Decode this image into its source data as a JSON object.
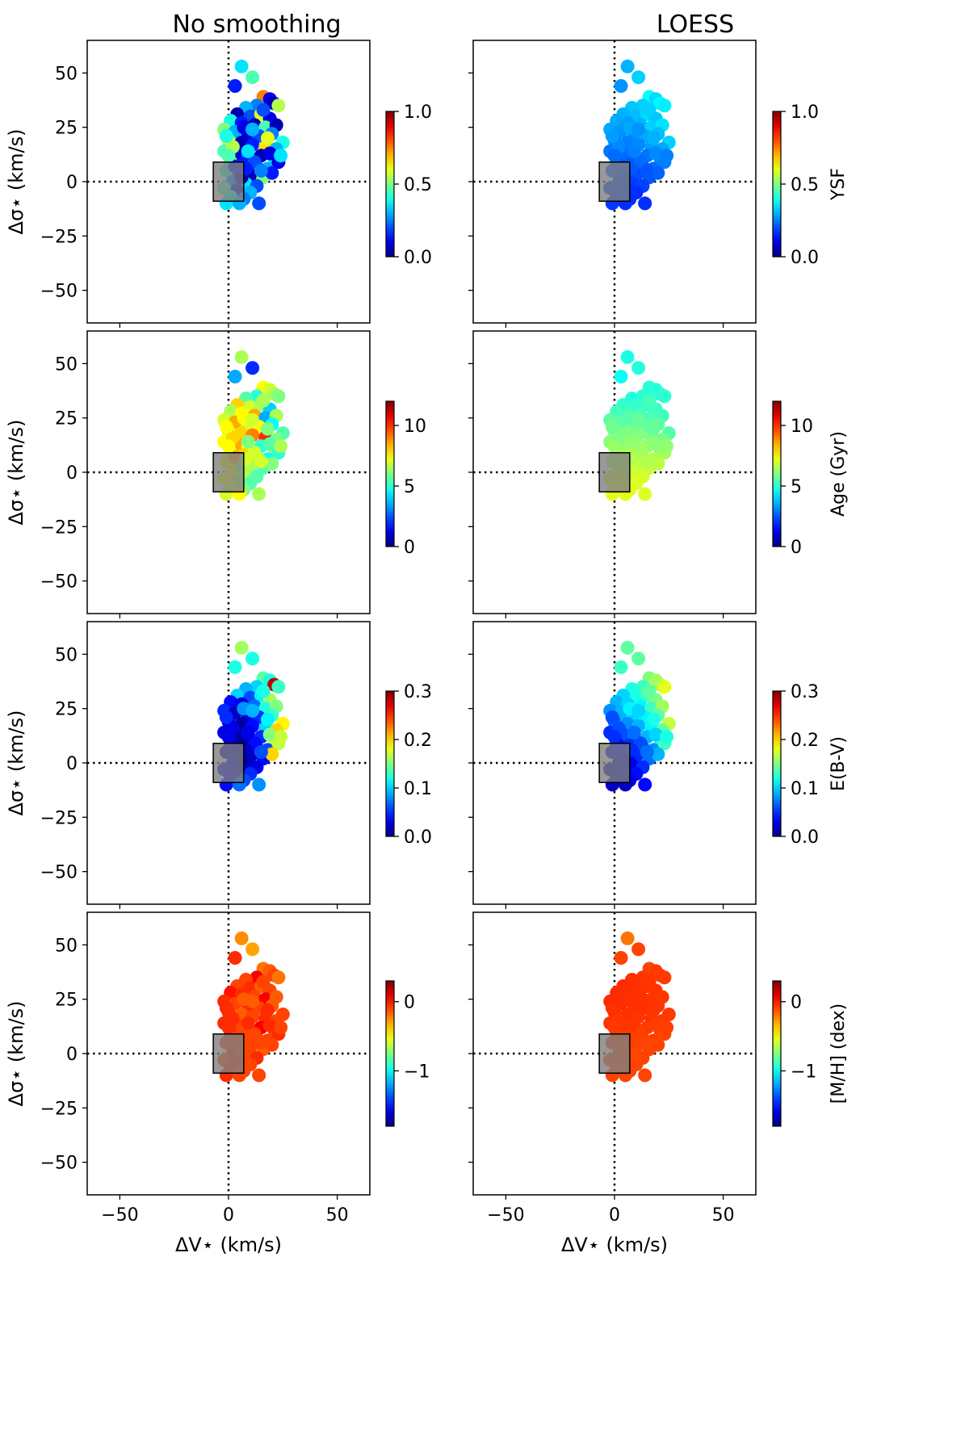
{
  "chart_data": {
    "type": "scatter",
    "columns": [
      {
        "title": "No smoothing",
        "smoothing": "none"
      },
      {
        "title": "LOESS",
        "smoothing": "loess"
      }
    ],
    "xlabel": "ΔV⋆ (km/s)",
    "ylabel": "Δσ⋆ (km/s)",
    "xlim": [
      -65,
      65
    ],
    "ylim": [
      -65,
      65
    ],
    "xticks": [
      -50,
      0,
      50
    ],
    "yticks": [
      -50,
      -25,
      0,
      25,
      50
    ],
    "xtick_labels": [
      "−50",
      "0",
      "50"
    ],
    "ytick_labels": [
      "−50",
      "−25",
      "0",
      "25",
      "50"
    ],
    "x_tick_labels_on_bottom_row_only": true,
    "y_tick_labels_on_left_column_only": true,
    "reference_lines": {
      "x": 0,
      "y": 0,
      "style": "dotted"
    },
    "reference_box": {
      "x": [
        -7,
        7
      ],
      "y": [
        -9,
        9
      ],
      "color": "#808080"
    },
    "colormap": "jet",
    "rows": [
      {
        "colorbar_label": "",
        "right_colorbar_label": "YSF",
        "cbar_range": [
          0,
          1.0
        ],
        "cbar_ticks": [
          0,
          0.5,
          1.0
        ],
        "cbar_tick_labels": [
          "0.0",
          "0.5",
          "1.0"
        ]
      },
      {
        "colorbar_label": "",
        "right_colorbar_label": "Age (Gyr)",
        "cbar_range": [
          0,
          12
        ],
        "cbar_ticks": [
          0,
          5,
          10
        ],
        "cbar_tick_labels": [
          "0",
          "5",
          "10"
        ]
      },
      {
        "colorbar_label": "",
        "right_colorbar_label": "E(B-V)",
        "cbar_range": [
          0,
          0.3
        ],
        "cbar_ticks": [
          0,
          0.1,
          0.2,
          0.3
        ],
        "cbar_tick_labels": [
          "0.0",
          "0.1",
          "0.2",
          "0.3"
        ]
      },
      {
        "colorbar_label": "",
        "right_colorbar_label": "[M/H] (dex)",
        "cbar_range": [
          -1.8,
          0.3
        ],
        "cbar_ticks": [
          -1,
          0
        ],
        "cbar_tick_labels": [
          "−1",
          "0"
        ]
      }
    ],
    "points": [
      {
        "x": 6,
        "y": 53
      },
      {
        "x": 11,
        "y": 48
      },
      {
        "x": 3,
        "y": 44
      },
      {
        "x": 16,
        "y": 39
      },
      {
        "x": 19,
        "y": 38
      },
      {
        "x": 21,
        "y": 36
      },
      {
        "x": 13,
        "y": 35
      },
      {
        "x": 8,
        "y": 34
      },
      {
        "x": 23,
        "y": 35
      },
      {
        "x": 4,
        "y": 31
      },
      {
        "x": 10,
        "y": 30
      },
      {
        "x": 15,
        "y": 31
      },
      {
        "x": 19,
        "y": 29
      },
      {
        "x": 1,
        "y": 28
      },
      {
        "x": 6,
        "y": 27
      },
      {
        "x": 12,
        "y": 26
      },
      {
        "x": 17,
        "y": 25
      },
      {
        "x": 22,
        "y": 26
      },
      {
        "x": -2,
        "y": 24
      },
      {
        "x": 3,
        "y": 23
      },
      {
        "x": 9,
        "y": 22
      },
      {
        "x": 14,
        "y": 21
      },
      {
        "x": 20,
        "y": 22
      },
      {
        "x": 25,
        "y": 18
      },
      {
        "x": 0,
        "y": 19
      },
      {
        "x": 6,
        "y": 18
      },
      {
        "x": 11,
        "y": 17
      },
      {
        "x": 17,
        "y": 16
      },
      {
        "x": 22,
        "y": 15
      },
      {
        "x": -2,
        "y": 14
      },
      {
        "x": 4,
        "y": 13
      },
      {
        "x": 9,
        "y": 12
      },
      {
        "x": 15,
        "y": 12
      },
      {
        "x": 21,
        "y": 11
      },
      {
        "x": 1,
        "y": 9
      },
      {
        "x": 7,
        "y": 8
      },
      {
        "x": 13,
        "y": 7
      },
      {
        "x": 18,
        "y": 6
      },
      {
        "x": 23,
        "y": 9
      },
      {
        "x": -1,
        "y": 5
      },
      {
        "x": 5,
        "y": 4
      },
      {
        "x": 10,
        "y": 3
      },
      {
        "x": 16,
        "y": 2
      },
      {
        "x": 20,
        "y": 4
      },
      {
        "x": 2,
        "y": 0
      },
      {
        "x": 8,
        "y": -1
      },
      {
        "x": 13,
        "y": -2
      },
      {
        "x": -2,
        "y": -3
      },
      {
        "x": 4,
        "y": -4
      },
      {
        "x": 10,
        "y": -5
      },
      {
        "x": 1,
        "y": -7
      },
      {
        "x": 7,
        "y": -8
      },
      {
        "x": 14,
        "y": -10
      },
      {
        "x": -1,
        "y": -10
      },
      {
        "x": 5,
        "y": -10
      },
      {
        "x": 2,
        "y": 16
      },
      {
        "x": 7,
        "y": 25
      },
      {
        "x": 12,
        "y": 9
      },
      {
        "x": 18,
        "y": 20
      },
      {
        "x": 3,
        "y": 7
      },
      {
        "x": 9,
        "y": 14
      },
      {
        "x": 15,
        "y": 5
      },
      {
        "x": 0,
        "y": 12
      },
      {
        "x": 6,
        "y": 2
      },
      {
        "x": 11,
        "y": 24
      },
      {
        "x": 16,
        "y": 33
      },
      {
        "x": 19,
        "y": 13
      },
      {
        "x": 24,
        "y": 12
      },
      {
        "x": -1,
        "y": 21
      },
      {
        "x": 8,
        "y": 6
      }
    ],
    "values": {
      "ysf": [
        [
          0.35,
          0.45,
          0.15,
          0.75,
          0.1,
          0.05,
          0.25,
          0.3,
          0.55,
          0.05,
          0.2,
          0.6,
          0.1,
          0.4,
          0.15,
          0.05,
          0.45,
          0.05,
          0.5,
          0.3,
          0.1,
          0.2,
          0.25,
          0.4,
          0.55,
          0.05,
          0.15,
          0.65,
          0.3,
          0.45,
          0.1,
          0.2,
          0.05,
          0.35,
          0.5,
          0.15,
          0.25,
          0.3,
          0.1,
          0.4,
          0.2,
          0.05,
          0.5,
          0.15,
          0.25,
          0.35,
          0.2,
          0.45,
          0.1,
          0.3,
          0.4,
          0.25,
          0.2,
          0.35,
          0.3,
          0.55,
          0.1,
          0.2,
          0.6,
          0.15,
          0.35,
          0.25,
          0.45,
          0.05,
          0.3,
          0.2,
          0.1,
          0.35,
          0.4,
          0.15
        ],
        [
          0.3,
          0.33,
          0.27,
          0.38,
          0.34,
          0.37,
          0.33,
          0.32,
          0.36,
          0.3,
          0.31,
          0.34,
          0.32,
          0.29,
          0.28,
          0.3,
          0.33,
          0.35,
          0.29,
          0.27,
          0.27,
          0.29,
          0.31,
          0.33,
          0.25,
          0.25,
          0.26,
          0.28,
          0.29,
          0.24,
          0.23,
          0.23,
          0.24,
          0.26,
          0.22,
          0.21,
          0.22,
          0.23,
          0.25,
          0.21,
          0.2,
          0.2,
          0.21,
          0.22,
          0.19,
          0.18,
          0.19,
          0.19,
          0.18,
          0.17,
          0.18,
          0.17,
          0.17,
          0.18,
          0.17,
          0.26,
          0.29,
          0.23,
          0.3,
          0.21,
          0.25,
          0.21,
          0.23,
          0.19,
          0.27,
          0.33,
          0.26,
          0.25,
          0.28,
          0.21
        ]
      ],
      "age": [
        [
          6.5,
          2.0,
          3.5,
          7.5,
          7.0,
          6.5,
          5.0,
          5.5,
          6.0,
          8.0,
          7.0,
          6.5,
          4.0,
          6.5,
          7.5,
          8.5,
          3.5,
          6.5,
          7.0,
          8.5,
          7.0,
          7.5,
          4.5,
          5.5,
          7.0,
          8.0,
          9.0,
          10.0,
          6.0,
          7.5,
          8.5,
          7.5,
          5.0,
          6.5,
          7.0,
          8.0,
          6.0,
          4.5,
          5.0,
          7.5,
          8.0,
          6.5,
          5.5,
          6.0,
          7.5,
          6.5,
          5.5,
          7.5,
          6.5,
          5.5,
          7.0,
          6.0,
          6.5,
          7.0,
          7.5,
          8.0,
          7.5,
          7.0,
          6.0,
          8.5,
          6.0,
          7.0,
          7.5,
          6.5,
          7.0,
          6.5,
          5.5,
          6.5,
          7.5,
          7.0
        ],
        [
          4.8,
          4.9,
          4.6,
          5.0,
          4.9,
          5.0,
          5.0,
          4.9,
          5.0,
          5.1,
          5.1,
          5.2,
          5.2,
          5.3,
          5.3,
          5.4,
          5.4,
          5.3,
          5.6,
          5.6,
          5.7,
          5.7,
          5.6,
          5.5,
          5.9,
          6.0,
          6.0,
          6.0,
          5.9,
          6.1,
          6.2,
          6.3,
          6.3,
          6.2,
          6.4,
          6.5,
          6.5,
          6.5,
          6.4,
          6.6,
          6.7,
          6.8,
          6.8,
          6.7,
          6.9,
          7.0,
          7.0,
          7.0,
          7.1,
          7.1,
          7.1,
          7.2,
          7.1,
          7.2,
          7.2,
          6.0,
          5.5,
          6.4,
          5.7,
          6.6,
          6.2,
          6.6,
          6.3,
          6.8,
          5.7,
          5.3,
          6.1,
          6.2,
          5.8,
          6.6
        ]
      ],
      "ebv": [
        [
          0.16,
          0.12,
          0.12,
          0.14,
          0.12,
          0.28,
          0.1,
          0.09,
          0.13,
          0.1,
          0.06,
          0.11,
          0.16,
          0.04,
          0.03,
          0.07,
          0.12,
          0.15,
          0.05,
          0.02,
          0.03,
          0.05,
          0.13,
          0.19,
          0.03,
          0.01,
          0.04,
          0.1,
          0.2,
          0.03,
          0.01,
          0.02,
          0.05,
          0.18,
          0.02,
          0.01,
          0.03,
          0.06,
          0.17,
          0.02,
          0.01,
          0.02,
          0.04,
          0.2,
          0.03,
          0.02,
          0.03,
          0.04,
          0.02,
          0.05,
          0.03,
          0.06,
          0.08,
          0.04,
          0.07,
          0.03,
          0.08,
          0.04,
          0.11,
          0.02,
          0.03,
          0.06,
          0.03,
          0.01,
          0.09,
          0.12,
          0.15,
          0.17,
          0.05,
          0.02
        ],
        [
          0.14,
          0.14,
          0.13,
          0.15,
          0.16,
          0.16,
          0.13,
          0.12,
          0.18,
          0.1,
          0.12,
          0.13,
          0.15,
          0.09,
          0.1,
          0.11,
          0.13,
          0.16,
          0.08,
          0.09,
          0.1,
          0.11,
          0.14,
          0.17,
          0.07,
          0.08,
          0.09,
          0.11,
          0.14,
          0.05,
          0.06,
          0.07,
          0.09,
          0.12,
          0.04,
          0.05,
          0.06,
          0.08,
          0.13,
          0.03,
          0.04,
          0.05,
          0.07,
          0.09,
          0.03,
          0.03,
          0.05,
          0.02,
          0.03,
          0.04,
          0.02,
          0.03,
          0.04,
          0.02,
          0.02,
          0.06,
          0.11,
          0.06,
          0.12,
          0.04,
          0.07,
          0.07,
          0.05,
          0.03,
          0.1,
          0.14,
          0.1,
          0.12,
          0.06,
          0.05
        ]
      ],
      "mh": [
        [
          -0.25,
          -0.3,
          -0.05,
          -0.2,
          -0.15,
          -0.1,
          0.05,
          -0.1,
          -0.2,
          -0.1,
          -0.05,
          -0.15,
          -0.1,
          0.0,
          -0.05,
          -0.1,
          0.05,
          -0.15,
          -0.05,
          -0.1,
          -0.05,
          -0.1,
          -0.15,
          -0.1,
          -0.05,
          -0.15,
          -0.1,
          -0.05,
          -0.1,
          -0.05,
          -0.1,
          -0.15,
          0.05,
          -0.1,
          -0.05,
          -0.1,
          -0.05,
          -0.1,
          -0.05,
          -0.1,
          -0.05,
          -0.1,
          -0.15,
          -0.1,
          -0.05,
          -0.1,
          -0.05,
          -0.1,
          -0.05,
          -0.1,
          -0.05,
          -0.1,
          -0.1,
          -0.05,
          -0.1,
          -0.05,
          -0.15,
          -0.1,
          -0.05,
          -0.1,
          -0.05,
          -0.1,
          -0.05,
          -0.1,
          -0.15,
          -0.1,
          -0.05,
          -0.1,
          -0.05,
          -0.1
        ],
        [
          -0.2,
          -0.1,
          -0.1,
          -0.1,
          -0.08,
          -0.08,
          -0.07,
          -0.06,
          -0.08,
          -0.05,
          -0.06,
          -0.07,
          -0.07,
          -0.05,
          -0.05,
          -0.06,
          -0.07,
          -0.08,
          -0.05,
          -0.05,
          -0.06,
          -0.06,
          -0.07,
          -0.08,
          -0.06,
          -0.06,
          -0.07,
          -0.07,
          -0.08,
          -0.07,
          -0.07,
          -0.08,
          -0.08,
          -0.09,
          -0.08,
          -0.08,
          -0.09,
          -0.09,
          -0.1,
          -0.09,
          -0.09,
          -0.1,
          -0.1,
          -0.1,
          -0.1,
          -0.1,
          -0.1,
          -0.1,
          -0.1,
          -0.1,
          -0.1,
          -0.1,
          -0.1,
          -0.1,
          -0.1,
          -0.07,
          -0.06,
          -0.09,
          -0.07,
          -0.09,
          -0.07,
          -0.1,
          -0.08,
          -0.1,
          -0.06,
          -0.07,
          -0.09,
          -0.09,
          -0.06,
          -0.09
        ]
      ]
    }
  }
}
